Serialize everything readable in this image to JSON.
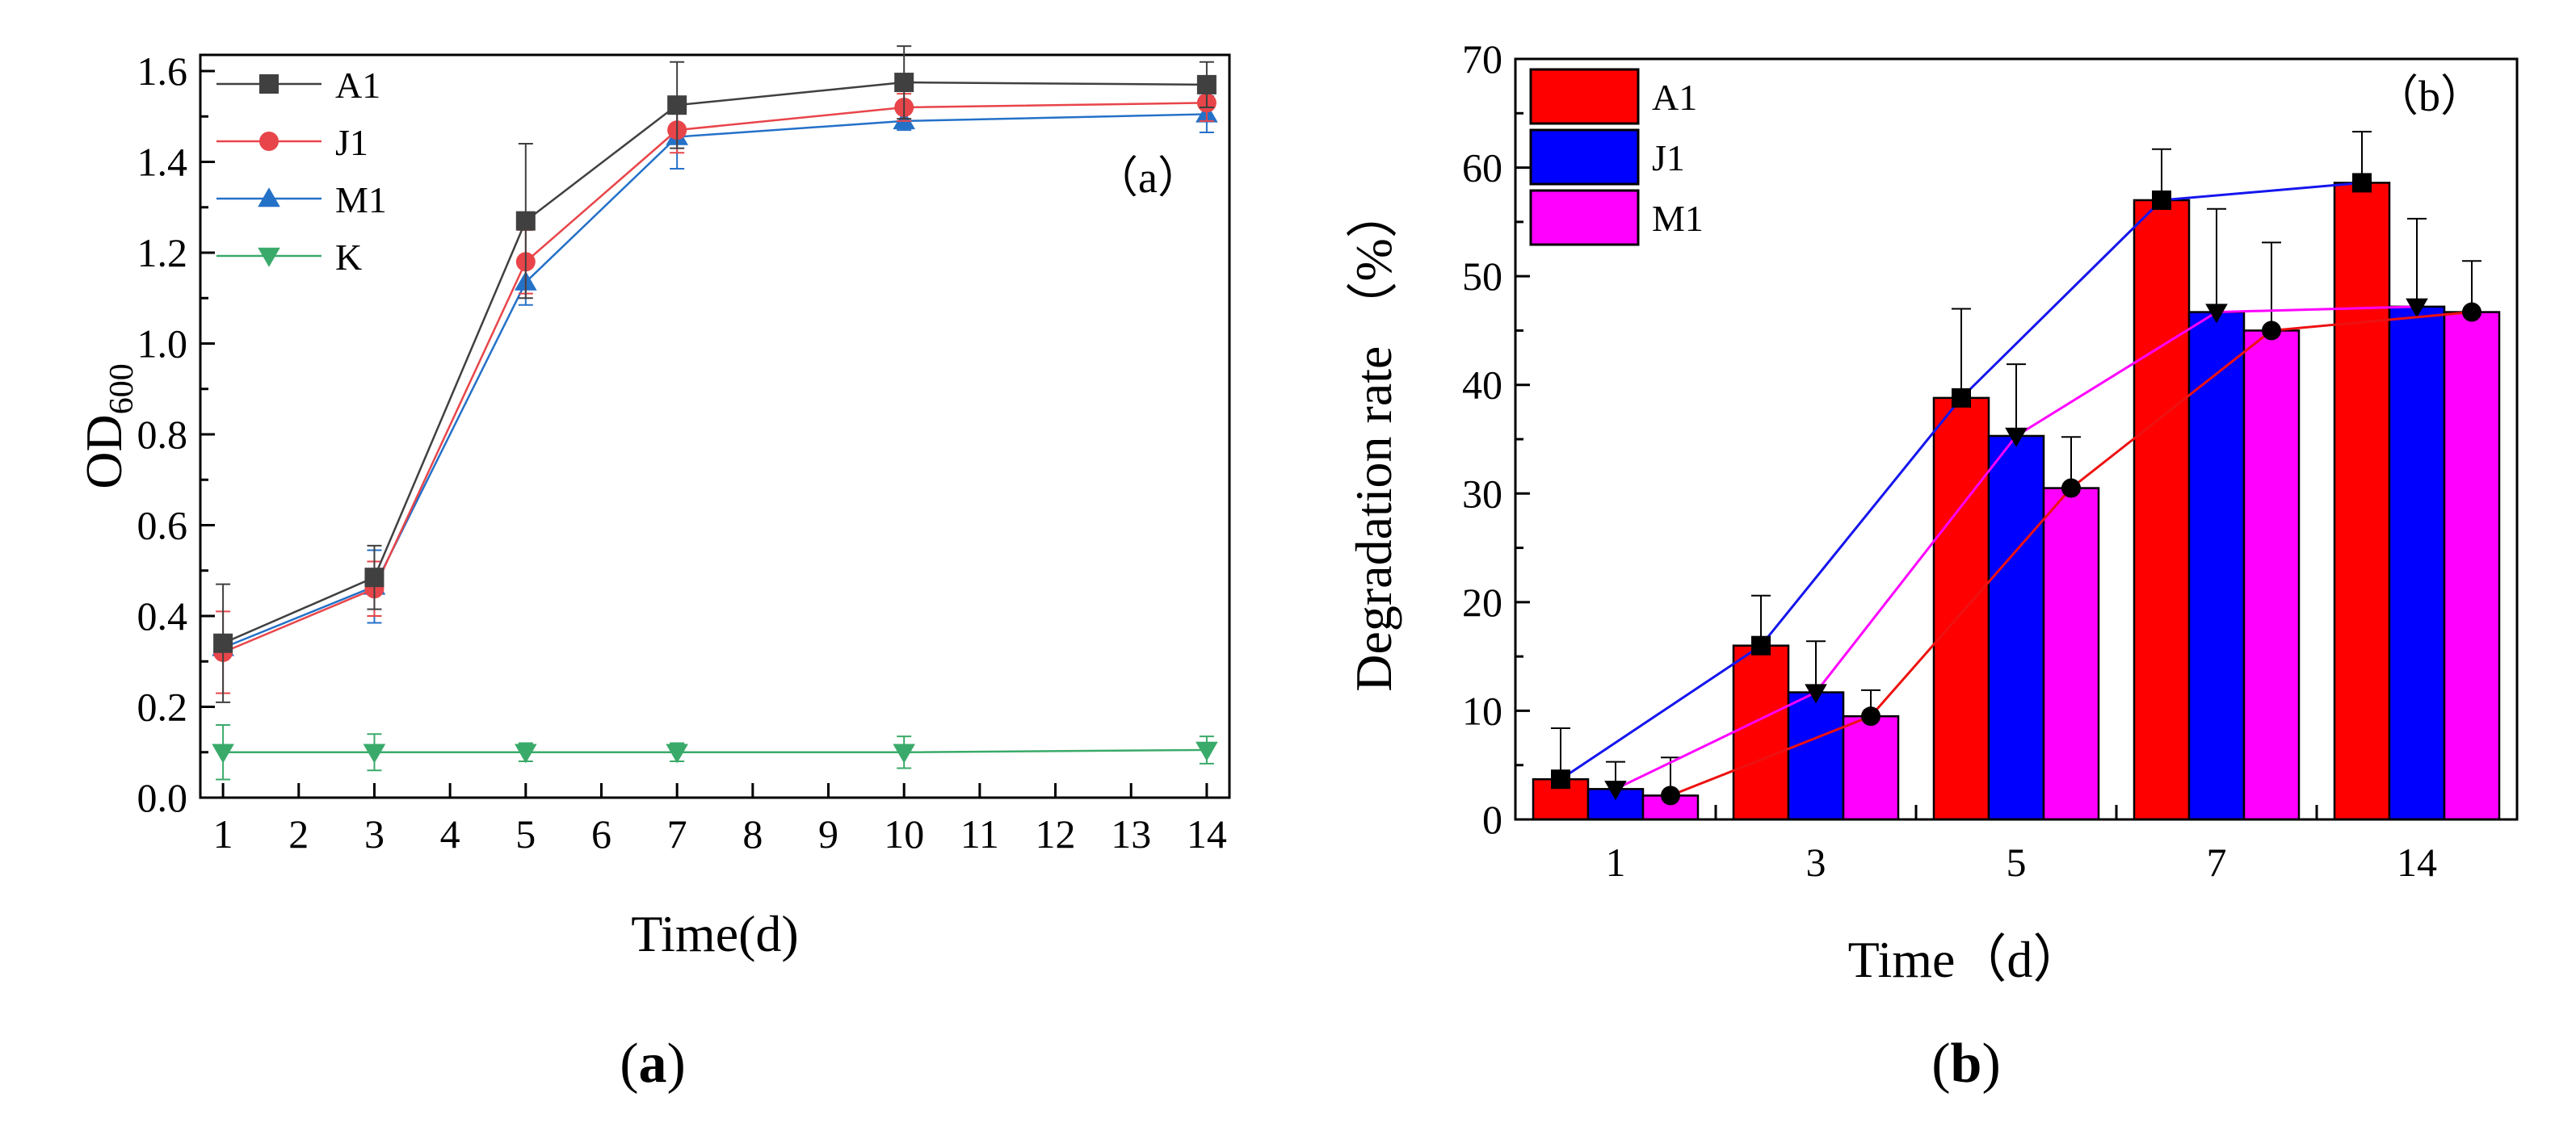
{
  "chart_data": [
    {
      "type": "line",
      "panel_label": "（a）",
      "caption": {
        "open": "(",
        "letter": "a",
        "close": ")"
      },
      "xlabel": "Time(d)",
      "ylabel": {
        "base": "OD",
        "sub": "600"
      },
      "xlim": [
        0.7,
        14.3
      ],
      "ylim": [
        0,
        1.6
      ],
      "x_ticks": [
        1,
        2,
        3,
        4,
        5,
        6,
        7,
        8,
        9,
        10,
        11,
        12,
        13,
        14
      ],
      "y_ticks": [
        0.0,
        0.2,
        0.4,
        0.6,
        0.8,
        1.0,
        1.2,
        1.4,
        1.6
      ],
      "y_tick_labels": [
        "0.0",
        "0.2",
        "0.4",
        "0.6",
        "0.8",
        "1.0",
        "1.2",
        "1.4",
        "1.6"
      ],
      "x": [
        1,
        3,
        5,
        7,
        10,
        14
      ],
      "series": [
        {
          "name": "A1",
          "color": "#404040",
          "marker": "square",
          "values": [
            0.34,
            0.485,
            1.27,
            1.525,
            1.575,
            1.57
          ],
          "errors": [
            0.13,
            0.07,
            0.17,
            0.095,
            0.08,
            0.05
          ]
        },
        {
          "name": "J1",
          "color": "#e8454a",
          "marker": "circle",
          "values": [
            0.32,
            0.46,
            1.18,
            1.47,
            1.52,
            1.53
          ],
          "errors": [
            0.09,
            0.06,
            0.07,
            0.05,
            0.03,
            0.04
          ]
        },
        {
          "name": "M1",
          "color": "#2471c8",
          "marker": "triangle-up",
          "values": [
            0.33,
            0.465,
            1.135,
            1.455,
            1.49,
            1.505
          ],
          "errors": [
            0.02,
            0.08,
            0.05,
            0.07,
            0.02,
            0.04
          ]
        },
        {
          "name": "K",
          "color": "#3aaa6a",
          "marker": "triangle-down",
          "values": [
            0.1,
            0.1,
            0.1,
            0.1,
            0.1,
            0.105
          ],
          "errors": [
            0.06,
            0.04,
            0.02,
            0.02,
            0.035,
            0.03
          ]
        }
      ]
    },
    {
      "type": "bar",
      "panel_label": "（b）",
      "caption": {
        "open": "(",
        "letter": "b",
        "close": ")"
      },
      "xlabel": "Time（d）",
      "ylabel": "Degradation rate （%）",
      "ylim": [
        0,
        70
      ],
      "y_ticks": [
        0,
        10,
        20,
        30,
        40,
        50,
        60,
        70
      ],
      "categories": [
        "1",
        "3",
        "5",
        "7",
        "14"
      ],
      "series": [
        {
          "name": "A1",
          "color": "#ff0000",
          "line_color": "#1515ee",
          "line_marker": "square",
          "values": [
            3.7,
            16.0,
            38.8,
            57.0,
            58.6
          ],
          "errors": [
            4.7,
            4.6,
            8.2,
            4.7,
            4.7
          ]
        },
        {
          "name": "J1",
          "color": "#0000ff",
          "line_color": "#ff00ff",
          "line_marker": "triangle-down",
          "values": [
            2.8,
            11.7,
            35.3,
            46.7,
            47.2
          ],
          "errors": [
            2.5,
            4.7,
            6.6,
            9.5,
            8.1
          ]
        },
        {
          "name": "M1",
          "color": "#ff00ff",
          "line_color": "#ee1111",
          "line_marker": "circle",
          "values": [
            2.2,
            9.5,
            30.5,
            45.0,
            46.7
          ],
          "errors": [
            3.5,
            2.4,
            4.7,
            8.1,
            4.7
          ]
        }
      ]
    }
  ]
}
